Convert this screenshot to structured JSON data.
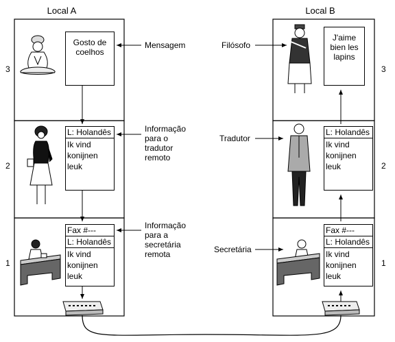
{
  "local_a": {
    "title": "Local A"
  },
  "local_b": {
    "title": "Local B"
  },
  "layers": [
    {
      "number": "3"
    },
    {
      "number": "2"
    },
    {
      "number": "1"
    }
  ],
  "site_a": {
    "message": "Gosto de coelhos",
    "translator_header": "L: Holandês",
    "translator_body": "Ik vind konijnen leuk",
    "secretary_fax": "Fax #---",
    "secretary_lang": "L: Holandês",
    "secretary_body": "Ik vind konijnen leuk"
  },
  "site_b": {
    "message": "J'aime bien les lapins",
    "translator_header": "L: Holandês",
    "translator_body": "Ik vind konijnen leuk",
    "secretary_fax": "Fax #---",
    "secretary_lang": "L: Holandês",
    "secretary_body": "Ik vind konijnen leuk"
  },
  "annotations": {
    "mensagem": "Mensagem",
    "info_tradutor": [
      "Informação",
      "para o",
      "tradutor",
      "remoto"
    ],
    "info_secretaria": [
      "Informação",
      "para a",
      "secretária",
      "remota"
    ],
    "filosofo": "Filósofo",
    "tradutor": "Tradutor",
    "secretaria": "Secretária"
  }
}
